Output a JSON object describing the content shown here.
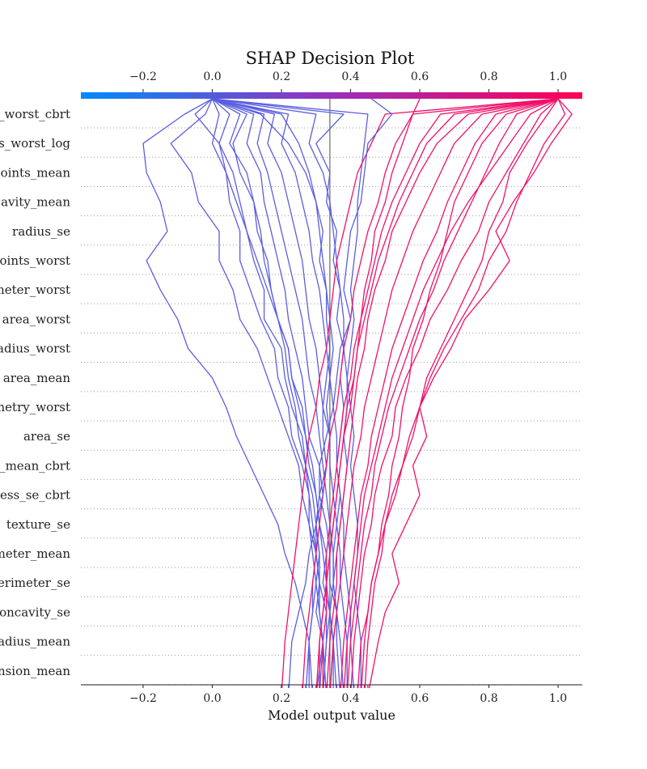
{
  "chart_data": {
    "type": "line",
    "title": "SHAP Decision Plot",
    "xlabel": "Model output value",
    "xlim": [
      -0.38,
      1.07
    ],
    "base_value": 0.34,
    "xticks": [
      -0.2,
      0.0,
      0.2,
      0.4,
      0.6,
      0.8,
      1.0
    ],
    "xtick_labels": [
      "−0.2",
      "0.0",
      "0.2",
      "0.4",
      "0.6",
      "0.8",
      "1.0"
    ],
    "features": [
      "concave_worst_cbrt",
      "compactness_worst_log",
      "concave points_mean",
      "concavity_mean",
      "radius_se",
      "concave points_worst",
      "perimeter_worst",
      "area_worst",
      "radius_worst",
      "area_mean",
      "symmetry_worst",
      "area_se",
      "compactness_mean_cbrt",
      "compactness_se_cbrt",
      "texture_se",
      "perimeter_mean",
      "perimeter_se",
      "concavity_se",
      "radius_mean",
      "fractal_dimension_mean"
    ],
    "feature_labels_visible": [
      "e_worst_cbrt",
      "ss_worst_log",
      "points_mean",
      "cavity_mean",
      "radius_se",
      "points_worst",
      "meter_worst",
      "area_worst",
      "adius_worst",
      "area_mean",
      "netry_worst",
      "area_se",
      "s_mean_cbrt",
      "ness_se_cbrt",
      "texture_se",
      "meter_mean",
      "perimeter_se",
      "concavity_se",
      "adius_mean",
      "nsion_mean"
    ],
    "colorbar": {
      "from": "#008bfb",
      "to": "#ff0052",
      "range": [
        -0.38,
        1.07
      ]
    },
    "series": [
      {
        "values": [
          0.0,
          -0.08,
          -0.2,
          -0.19,
          -0.15,
          -0.13,
          -0.19,
          -0.15,
          -0.1,
          -0.07,
          0.0,
          0.04,
          0.07,
          0.11,
          0.15,
          0.19,
          0.21,
          0.24,
          0.26,
          0.28,
          0.29
        ]
      },
      {
        "values": [
          0.0,
          -0.02,
          -0.12,
          -0.06,
          -0.04,
          0.02,
          0.02,
          0.06,
          0.08,
          0.13,
          0.16,
          0.19,
          0.22,
          0.25,
          0.26,
          0.28,
          0.29,
          0.3,
          0.31,
          0.32,
          0.33
        ]
      },
      {
        "values": [
          0.0,
          0.02,
          0.0,
          0.04,
          0.05,
          0.08,
          0.08,
          0.11,
          0.14,
          0.18,
          0.19,
          0.22,
          0.23,
          0.26,
          0.28,
          0.28,
          0.3,
          0.31,
          0.3,
          0.32,
          0.31
        ]
      },
      {
        "values": [
          0.0,
          0.05,
          0.02,
          0.06,
          0.08,
          0.1,
          0.12,
          0.15,
          0.15,
          0.2,
          0.21,
          0.23,
          0.26,
          0.27,
          0.29,
          0.3,
          0.31,
          0.31,
          0.33,
          0.33,
          0.32
        ]
      },
      {
        "values": [
          0.0,
          0.1,
          0.06,
          0.08,
          0.12,
          0.13,
          0.16,
          0.17,
          0.19,
          0.22,
          0.23,
          0.26,
          0.27,
          0.29,
          0.3,
          0.31,
          0.33,
          0.32,
          0.34,
          0.35,
          0.35
        ]
      },
      {
        "values": [
          0.0,
          0.12,
          0.1,
          0.14,
          0.15,
          0.17,
          0.19,
          0.21,
          0.22,
          0.24,
          0.26,
          0.27,
          0.28,
          0.31,
          0.31,
          0.33,
          0.34,
          0.34,
          0.36,
          0.36,
          0.37
        ]
      },
      {
        "values": [
          0.0,
          0.15,
          0.13,
          0.16,
          0.18,
          0.2,
          0.22,
          0.24,
          0.26,
          0.27,
          0.28,
          0.3,
          0.31,
          0.32,
          0.33,
          0.34,
          0.35,
          0.35,
          0.36,
          0.37,
          0.38
        ]
      },
      {
        "values": [
          0.0,
          0.18,
          0.16,
          0.2,
          0.22,
          0.24,
          0.26,
          0.27,
          0.28,
          0.3,
          0.31,
          0.32,
          0.34,
          0.34,
          0.35,
          0.36,
          0.37,
          0.37,
          0.38,
          0.39,
          0.39
        ]
      },
      {
        "values": [
          0.0,
          0.22,
          0.2,
          0.24,
          0.26,
          0.28,
          0.29,
          0.31,
          0.32,
          0.33,
          0.34,
          0.35,
          0.36,
          0.36,
          0.37,
          0.38,
          0.38,
          0.39,
          0.4,
          0.4,
          0.41
        ]
      },
      {
        "values": [
          0.0,
          0.3,
          0.28,
          0.32,
          0.34,
          0.35,
          0.36,
          0.37,
          0.38,
          0.38,
          0.39,
          0.4,
          0.41,
          0.4,
          0.41,
          0.42,
          0.42,
          0.41,
          0.42,
          0.43,
          0.43
        ]
      },
      {
        "values": [
          0.0,
          0.38,
          0.3,
          0.34,
          0.33,
          0.36,
          0.35,
          0.37,
          0.36,
          0.38,
          0.37,
          0.38,
          0.37,
          0.36,
          0.37,
          0.36,
          0.35,
          0.35,
          0.36,
          0.35,
          0.34
        ]
      },
      {
        "values": [
          0.0,
          0.45,
          0.44,
          0.43,
          0.42,
          0.42,
          0.41,
          0.4,
          0.41,
          0.4,
          0.39,
          0.39,
          0.38,
          0.39,
          0.38,
          0.37,
          0.36,
          0.35,
          0.34,
          0.33,
          0.32
        ]
      },
      {
        "values": [
          0.0,
          0.2,
          0.25,
          0.28,
          0.3,
          0.32,
          0.31,
          0.33,
          0.34,
          0.35,
          0.34,
          0.33,
          0.34,
          0.33,
          0.32,
          0.3,
          0.31,
          0.3,
          0.29,
          0.28,
          0.27
        ]
      },
      {
        "values": [
          0.0,
          0.08,
          0.05,
          0.1,
          0.12,
          0.14,
          0.15,
          0.17,
          0.19,
          0.21,
          0.22,
          0.24,
          0.25,
          0.27,
          0.28,
          0.29,
          0.3,
          0.31,
          0.31,
          0.32,
          0.3
        ]
      },
      {
        "values": [
          0.0,
          0.14,
          0.22,
          0.27,
          0.3,
          0.31,
          0.32,
          0.33,
          0.33,
          0.34,
          0.33,
          0.32,
          0.32,
          0.33,
          0.31,
          0.3,
          0.3,
          0.29,
          0.29,
          0.28,
          0.28
        ]
      },
      {
        "values": [
          0.0,
          -0.05,
          0.02,
          0.04,
          0.07,
          0.1,
          0.13,
          0.16,
          0.19,
          0.22,
          0.23,
          0.25,
          0.27,
          0.28,
          0.3,
          0.31,
          0.32,
          0.33,
          0.34,
          0.35,
          0.36
        ]
      },
      {
        "values": [
          1.0,
          0.95,
          0.9,
          0.85,
          0.8,
          0.77,
          0.72,
          0.68,
          0.63,
          0.6,
          0.56,
          0.53,
          0.52,
          0.49,
          0.47,
          0.46,
          0.44,
          0.43,
          0.42,
          0.41,
          0.4
        ]
      },
      {
        "values": [
          1.0,
          1.02,
          0.96,
          0.92,
          0.88,
          0.85,
          0.8,
          0.77,
          0.72,
          0.67,
          0.63,
          0.6,
          0.57,
          0.55,
          0.52,
          0.5,
          0.48,
          0.46,
          0.45,
          0.43,
          0.42
        ]
      },
      {
        "values": [
          1.0,
          0.88,
          0.83,
          0.79,
          0.75,
          0.71,
          0.67,
          0.64,
          0.6,
          0.57,
          0.54,
          0.51,
          0.49,
          0.47,
          0.46,
          0.44,
          0.43,
          0.42,
          0.41,
          0.4,
          0.39
        ]
      },
      {
        "values": [
          1.0,
          0.97,
          0.91,
          0.86,
          0.84,
          0.8,
          0.78,
          0.74,
          0.7,
          0.66,
          0.62,
          0.6,
          0.58,
          0.55,
          0.53,
          0.5,
          0.49,
          0.47,
          0.46,
          0.45,
          0.44
        ]
      },
      {
        "values": [
          1.0,
          0.82,
          0.76,
          0.72,
          0.68,
          0.65,
          0.61,
          0.58,
          0.55,
          0.52,
          0.5,
          0.48,
          0.46,
          0.45,
          0.43,
          0.42,
          0.41,
          0.4,
          0.39,
          0.38,
          0.37
        ]
      },
      {
        "values": [
          1.0,
          0.78,
          0.7,
          0.66,
          0.62,
          0.58,
          0.55,
          0.52,
          0.5,
          0.48,
          0.46,
          0.44,
          0.43,
          0.41,
          0.4,
          0.39,
          0.38,
          0.37,
          0.36,
          0.35,
          0.34
        ]
      },
      {
        "values": [
          1.0,
          0.66,
          0.6,
          0.56,
          0.52,
          0.49,
          0.47,
          0.45,
          0.43,
          0.41,
          0.4,
          0.38,
          0.37,
          0.36,
          0.35,
          0.34,
          0.33,
          0.33,
          0.32,
          0.31,
          0.3
        ]
      },
      {
        "values": [
          1.0,
          0.58,
          0.53,
          0.5,
          0.48,
          0.45,
          0.43,
          0.41,
          0.4,
          0.38,
          0.37,
          0.36,
          0.34,
          0.33,
          0.32,
          0.31,
          0.3,
          0.29,
          0.28,
          0.27,
          0.26
        ]
      },
      {
        "values": [
          1.0,
          0.5,
          0.46,
          0.42,
          0.4,
          0.38,
          0.36,
          0.35,
          0.34,
          0.33,
          0.31,
          0.3,
          0.28,
          0.27,
          0.26,
          0.25,
          0.24,
          0.23,
          0.22,
          0.21,
          0.2
        ]
      },
      {
        "values": [
          1.0,
          1.04,
          0.98,
          0.93,
          0.87,
          0.82,
          0.86,
          0.8,
          0.73,
          0.69,
          0.64,
          0.6,
          0.62,
          0.58,
          0.6,
          0.56,
          0.52,
          0.54,
          0.5,
          0.48,
          0.45
        ]
      },
      {
        "values": [
          1.0,
          0.92,
          0.86,
          0.8,
          0.74,
          0.69,
          0.65,
          0.61,
          0.58,
          0.55,
          0.52,
          0.5,
          0.48,
          0.46,
          0.44,
          0.43,
          0.42,
          0.41,
          0.4,
          0.39,
          0.38
        ]
      },
      {
        "values": [
          1.0,
          0.74,
          0.65,
          0.6,
          0.56,
          0.52,
          0.5,
          0.47,
          0.45,
          0.44,
          0.42,
          0.41,
          0.4,
          0.39,
          0.38,
          0.37,
          0.36,
          0.36,
          0.35,
          0.34,
          0.33
        ]
      },
      {
        "values": [
          0.46,
          0.52,
          0.45,
          0.44,
          0.43,
          0.4,
          0.39,
          0.38,
          0.4,
          0.37,
          0.36,
          0.35,
          0.33,
          0.31,
          0.32,
          0.3,
          0.28,
          0.27,
          0.25,
          0.23,
          0.22
        ]
      },
      {
        "values": [
          0.6,
          0.58,
          0.55,
          0.52,
          0.5,
          0.47,
          0.46,
          0.44,
          0.43,
          0.42,
          0.41,
          0.4,
          0.38,
          0.37,
          0.36,
          0.35,
          0.34,
          0.33,
          0.32,
          0.31,
          0.31
        ]
      },
      {
        "values": [
          1.0,
          0.85,
          0.78,
          0.74,
          0.7,
          0.68,
          0.66,
          0.63,
          0.61,
          0.58,
          0.57,
          0.55,
          0.54,
          0.52,
          0.51,
          0.49,
          0.48,
          0.46,
          0.45,
          0.44,
          0.43
        ]
      },
      {
        "values": [
          1.0,
          0.7,
          0.62,
          0.58,
          0.54,
          0.51,
          0.48,
          0.46,
          0.44,
          0.42,
          0.41,
          0.39,
          0.38,
          0.37,
          0.36,
          0.35,
          0.34,
          0.33,
          0.33,
          0.32,
          0.32
        ]
      }
    ]
  }
}
